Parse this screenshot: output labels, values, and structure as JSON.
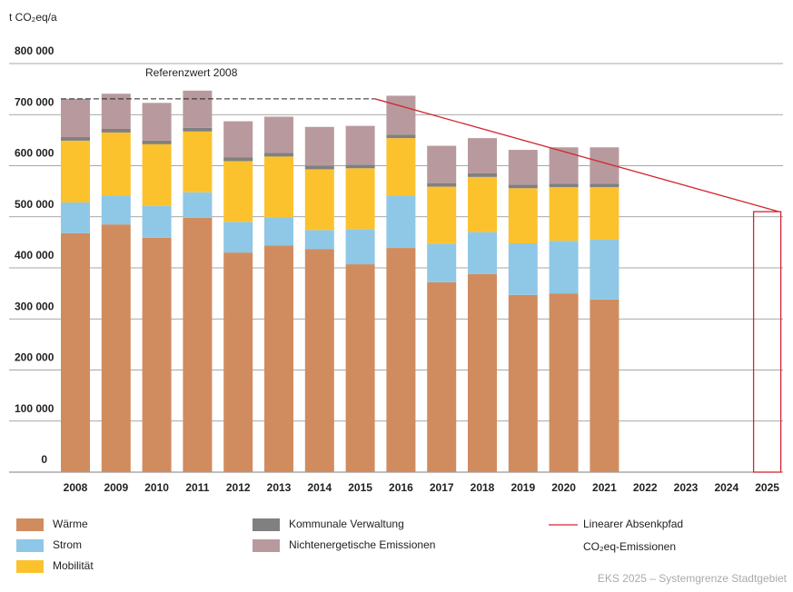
{
  "chart_data": {
    "type": "stacked_bar",
    "y_label": "t CO₂eq/a",
    "source": "EKS 2025 – Systemgrenze Stadtgebiet",
    "categories": [
      "2008",
      "2009",
      "2010",
      "2011",
      "2012",
      "2013",
      "2014",
      "2015",
      "2016",
      "2017",
      "2018",
      "2019",
      "2020",
      "2021",
      "2022",
      "2023",
      "2024",
      "2025"
    ],
    "series": [
      {
        "name": "Wärme",
        "color": "#d08c5f",
        "values": [
          468000,
          485000,
          459000,
          498000,
          430000,
          444000,
          437000,
          407000,
          439000,
          372000,
          388000,
          347000,
          350000,
          338000,
          null,
          null,
          null,
          null
        ]
      },
      {
        "name": "Strom",
        "color": "#8ec8e6",
        "values": [
          60000,
          57000,
          62000,
          50000,
          60000,
          55000,
          37000,
          69000,
          103000,
          75000,
          82000,
          101000,
          103000,
          117000,
          null,
          null,
          null,
          null
        ]
      },
      {
        "name": "Mobilität",
        "color": "#fcc22e",
        "values": [
          121000,
          123000,
          121000,
          119000,
          119000,
          119000,
          119000,
          119000,
          112000,
          112000,
          108000,
          108000,
          105000,
          103000,
          null,
          null,
          null,
          null
        ]
      },
      {
        "name": "Kommunale Verwaltung",
        "color": "#808080",
        "values": [
          7000,
          7000,
          7000,
          7000,
          7000,
          7000,
          7000,
          7000,
          7000,
          7000,
          7000,
          7000,
          7000,
          7000,
          null,
          null,
          null,
          null
        ]
      },
      {
        "name": "Nichtenergetische Emissionen",
        "color": "#b89a9e",
        "values": [
          75000,
          69000,
          74000,
          73000,
          71000,
          71000,
          76000,
          76000,
          76000,
          73000,
          69000,
          68000,
          71000,
          71000,
          null,
          null,
          null,
          null
        ]
      }
    ],
    "reference": {
      "label": "Referenzwert 2008",
      "value": 731000,
      "from": "2008",
      "to": "2015"
    },
    "target_path": {
      "name_lines": [
        "Linearer Absenkpfad",
        "CO₂eq-Emissionen"
      ],
      "color": "#d22630",
      "points": [
        {
          "x": "2015",
          "value": 731000
        },
        {
          "x": "2025",
          "value": 510000
        }
      ]
    },
    "ylim": [
      0,
      800000
    ],
    "yticks": [
      0,
      {
        "value": 100000,
        "label": "100 000"
      },
      {
        "value": 200000,
        "label": "200 000"
      },
      {
        "value": 300000,
        "label": "300 000"
      },
      {
        "value": 400000,
        "label": "400 000"
      },
      {
        "value": 500000,
        "label": "500 000"
      },
      {
        "value": 600000,
        "label": "600 000"
      },
      {
        "value": 700000,
        "label": "700 000"
      },
      {
        "value": 800000,
        "label": "800 000"
      }
    ],
    "grid": true
  }
}
